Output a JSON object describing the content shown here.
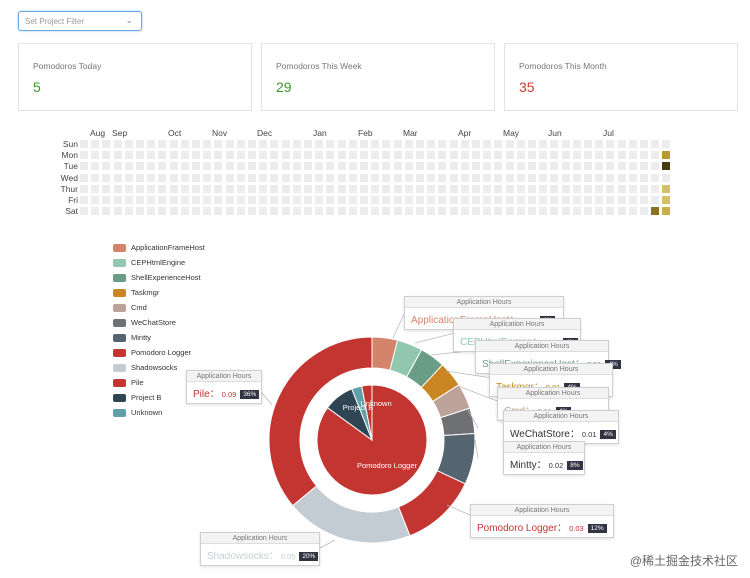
{
  "filter": {
    "placeholder": "Set Project Filter",
    "chevron_icon": "chevron-down-icon"
  },
  "cards": [
    {
      "label": "Pomodoros Today",
      "value": "5",
      "color": "#3a9a20"
    },
    {
      "label": "Pomodoros This Week",
      "value": "29",
      "color": "#3a9a20"
    },
    {
      "label": "Pomodoros This Month",
      "value": "35",
      "color": "#c8402d"
    }
  ],
  "heatmap": {
    "months": [
      "Aug",
      "Sep",
      "Oct",
      "Nov",
      "Dec",
      "Jan",
      "Feb",
      "Mar",
      "Apr",
      "May",
      "Jun",
      "Jul"
    ],
    "days": [
      "Sun",
      "Mon",
      "Tue",
      "Wed",
      "Thur",
      "Fri",
      "Sat"
    ],
    "empty_color": "#ececec",
    "active_cells": [
      {
        "week": 52,
        "day": 1,
        "color": "#b89a2a"
      },
      {
        "week": 52,
        "day": 2,
        "color": "#4a3a10"
      },
      {
        "week": 52,
        "day": 4,
        "color": "#d4c06a"
      },
      {
        "week": 52,
        "day": 5,
        "color": "#d4c06a"
      },
      {
        "week": 51,
        "day": 6,
        "color": "#8a7320"
      },
      {
        "week": 52,
        "day": 6,
        "color": "#c9b040"
      }
    ]
  },
  "legend": [
    {
      "label": "ApplicationFrameHost",
      "color": "#d4846a"
    },
    {
      "label": "CEPHtmlEngine",
      "color": "#91c7ae"
    },
    {
      "label": "ShellExperienceHost",
      "color": "#6a9d85"
    },
    {
      "label": "Taskmgr",
      "color": "#ca8622"
    },
    {
      "label": "Cmd",
      "color": "#bda29a"
    },
    {
      "label": "WeChatStore",
      "color": "#6e7074"
    },
    {
      "label": "Mintty",
      "color": "#546570"
    },
    {
      "label": "Pomodoro Logger",
      "color": "#c23531"
    },
    {
      "label": "Shadowsocks",
      "color": "#c4ccd3"
    },
    {
      "label": "Pile",
      "color": "#c23531"
    },
    {
      "label": "Project B",
      "color": "#2f4554"
    },
    {
      "label": "Unknown",
      "color": "#61a0a8"
    }
  ],
  "chart_data": {
    "type": "pie",
    "title": "",
    "inner": [
      {
        "label": "Pomodoro Logger",
        "value": 85,
        "color": "#c23531"
      },
      {
        "label": "Project B",
        "value": 9,
        "color": "#2f4554"
      },
      {
        "label": "Unknown",
        "value": 3,
        "color": "#61a0a8"
      },
      {
        "label": "Pile",
        "value": 3,
        "color": "#c23531"
      }
    ],
    "outer": [
      {
        "label": "ApplicationFrameHost",
        "value": 4,
        "color": "#d4846a"
      },
      {
        "label": "CEPHtmlEngine",
        "value": 4,
        "color": "#91c7ae"
      },
      {
        "label": "ShellExperienceHost",
        "value": 4,
        "color": "#6a9d85"
      },
      {
        "label": "Taskmgr",
        "value": 4,
        "color": "#ca8622"
      },
      {
        "label": "Cmd",
        "value": 4,
        "color": "#bda29a"
      },
      {
        "label": "WeChatStore",
        "value": 4,
        "color": "#6e7074"
      },
      {
        "label": "Mintty",
        "value": 8,
        "color": "#546570"
      },
      {
        "label": "Pomodoro Logger",
        "value": 12,
        "color": "#c23531"
      },
      {
        "label": "Shadowsocks",
        "value": 20,
        "color": "#c4ccd3"
      },
      {
        "label": "Pile",
        "value": 36,
        "color": "#c23531"
      }
    ],
    "inner_labels": [
      "Pomodoro Logger",
      "Project B",
      "Unknown"
    ]
  },
  "tooltips": [
    {
      "header": "Application Hours",
      "name": "ApplicationFrameHost",
      "value": "0.01",
      "pct": "4%",
      "color": "#d4846a"
    },
    {
      "header": "Application Hours",
      "name": "CEPHtmlEngine",
      "value": "0.01",
      "pct": "4%",
      "color": "#91c7ae"
    },
    {
      "header": "Application Hours",
      "name": "ShellExperienceHost",
      "value": "0.01",
      "pct": "4%",
      "color": "#6a9d85"
    },
    {
      "header": "Application Hours",
      "name": "Taskmgr",
      "value": "0.01",
      "pct": "4%",
      "color": "#ca8622"
    },
    {
      "header": "Application Hours",
      "name": "Cmd",
      "value": "0.01",
      "pct": "4%",
      "color": "#bda29a"
    },
    {
      "header": "Application Hours",
      "name": "WeChatStore",
      "value": "0.01",
      "pct": "4%",
      "color": "#6e7074"
    },
    {
      "header": "Application Hours",
      "name": "Mintty",
      "value": "0.02",
      "pct": "8%",
      "color": "#546570"
    },
    {
      "header": "Application Hours",
      "name": "Pomodoro Logger",
      "value": "0.03",
      "pct": "12%",
      "color": "#c23531"
    },
    {
      "header": "Application Hours",
      "name": "Shadowsocks",
      "value": "0.05",
      "pct": "20%",
      "color": "#c4ccd3"
    },
    {
      "header": "Application Hours",
      "name": "Pile",
      "value": "0.09",
      "pct": "36%",
      "color": "#c23531"
    }
  ],
  "watermark": "@稀土掘金技术社区"
}
